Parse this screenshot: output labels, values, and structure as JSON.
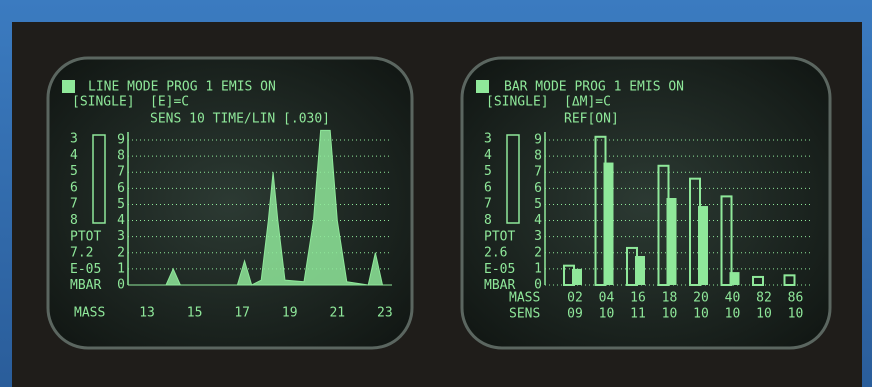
{
  "screens": [
    {
      "header": [
        "LINE MODE  PROG 1  EMIS ON",
        "[SINGLE]",
        "[E]=C",
        "SENS 10 TIME/LIN [.030]"
      ],
      "side_labels": [
        "3",
        "4",
        "5",
        "6",
        "7",
        "8",
        "PTOT",
        "7.2",
        "E-05",
        "MBAR"
      ],
      "yticks": [
        0,
        1,
        2,
        3,
        4,
        5,
        6,
        7,
        8,
        9
      ],
      "ylim": [
        0,
        9.6
      ],
      "x_title": "MASS",
      "xticks": [
        13,
        15,
        17,
        19,
        21,
        23
      ],
      "xlim": [
        12.2,
        23.3
      ],
      "x": [
        12.2,
        13.8,
        14.1,
        14.4,
        16.8,
        17.1,
        17.4,
        17.8,
        18.1,
        18.3,
        18.5,
        18.8,
        19.6,
        20.0,
        20.3,
        20.7,
        21.0,
        21.4,
        22.3,
        22.6,
        22.9,
        23.3
      ],
      "values": [
        0,
        0,
        1,
        0,
        0,
        1.5,
        0,
        0.3,
        4,
        7,
        4,
        0.3,
        0.2,
        4,
        9.6,
        9.6,
        4,
        0.2,
        0,
        2,
        0,
        0
      ]
    },
    {
      "header": [
        "BAR MODE  PROG 1  EMIS ON",
        "[SINGLE]",
        "[ΔM]=C",
        "REF[ON]"
      ],
      "side_labels": [
        "3",
        "4",
        "5",
        "6",
        "7",
        "8",
        "PTOT",
        "2.6",
        "E-05",
        "MBAR"
      ],
      "yticks": [
        0,
        1,
        2,
        3,
        4,
        5,
        6,
        7,
        8,
        9
      ],
      "ylim": [
        0,
        9.6
      ],
      "x_title": "MASS",
      "sens_title": "SENS",
      "categories": [
        "02",
        "04",
        "16",
        "18",
        "20",
        "40",
        "82",
        "86"
      ],
      "sens": [
        "09",
        "10",
        "11",
        "10",
        "10",
        "10",
        "10",
        "10"
      ],
      "reference": [
        1.2,
        9.2,
        2.3,
        7.4,
        6.6,
        5.5,
        0.5,
        0.6
      ],
      "values": [
        1.0,
        7.6,
        1.8,
        5.4,
        4.9,
        0.8,
        0,
        0
      ]
    }
  ]
}
